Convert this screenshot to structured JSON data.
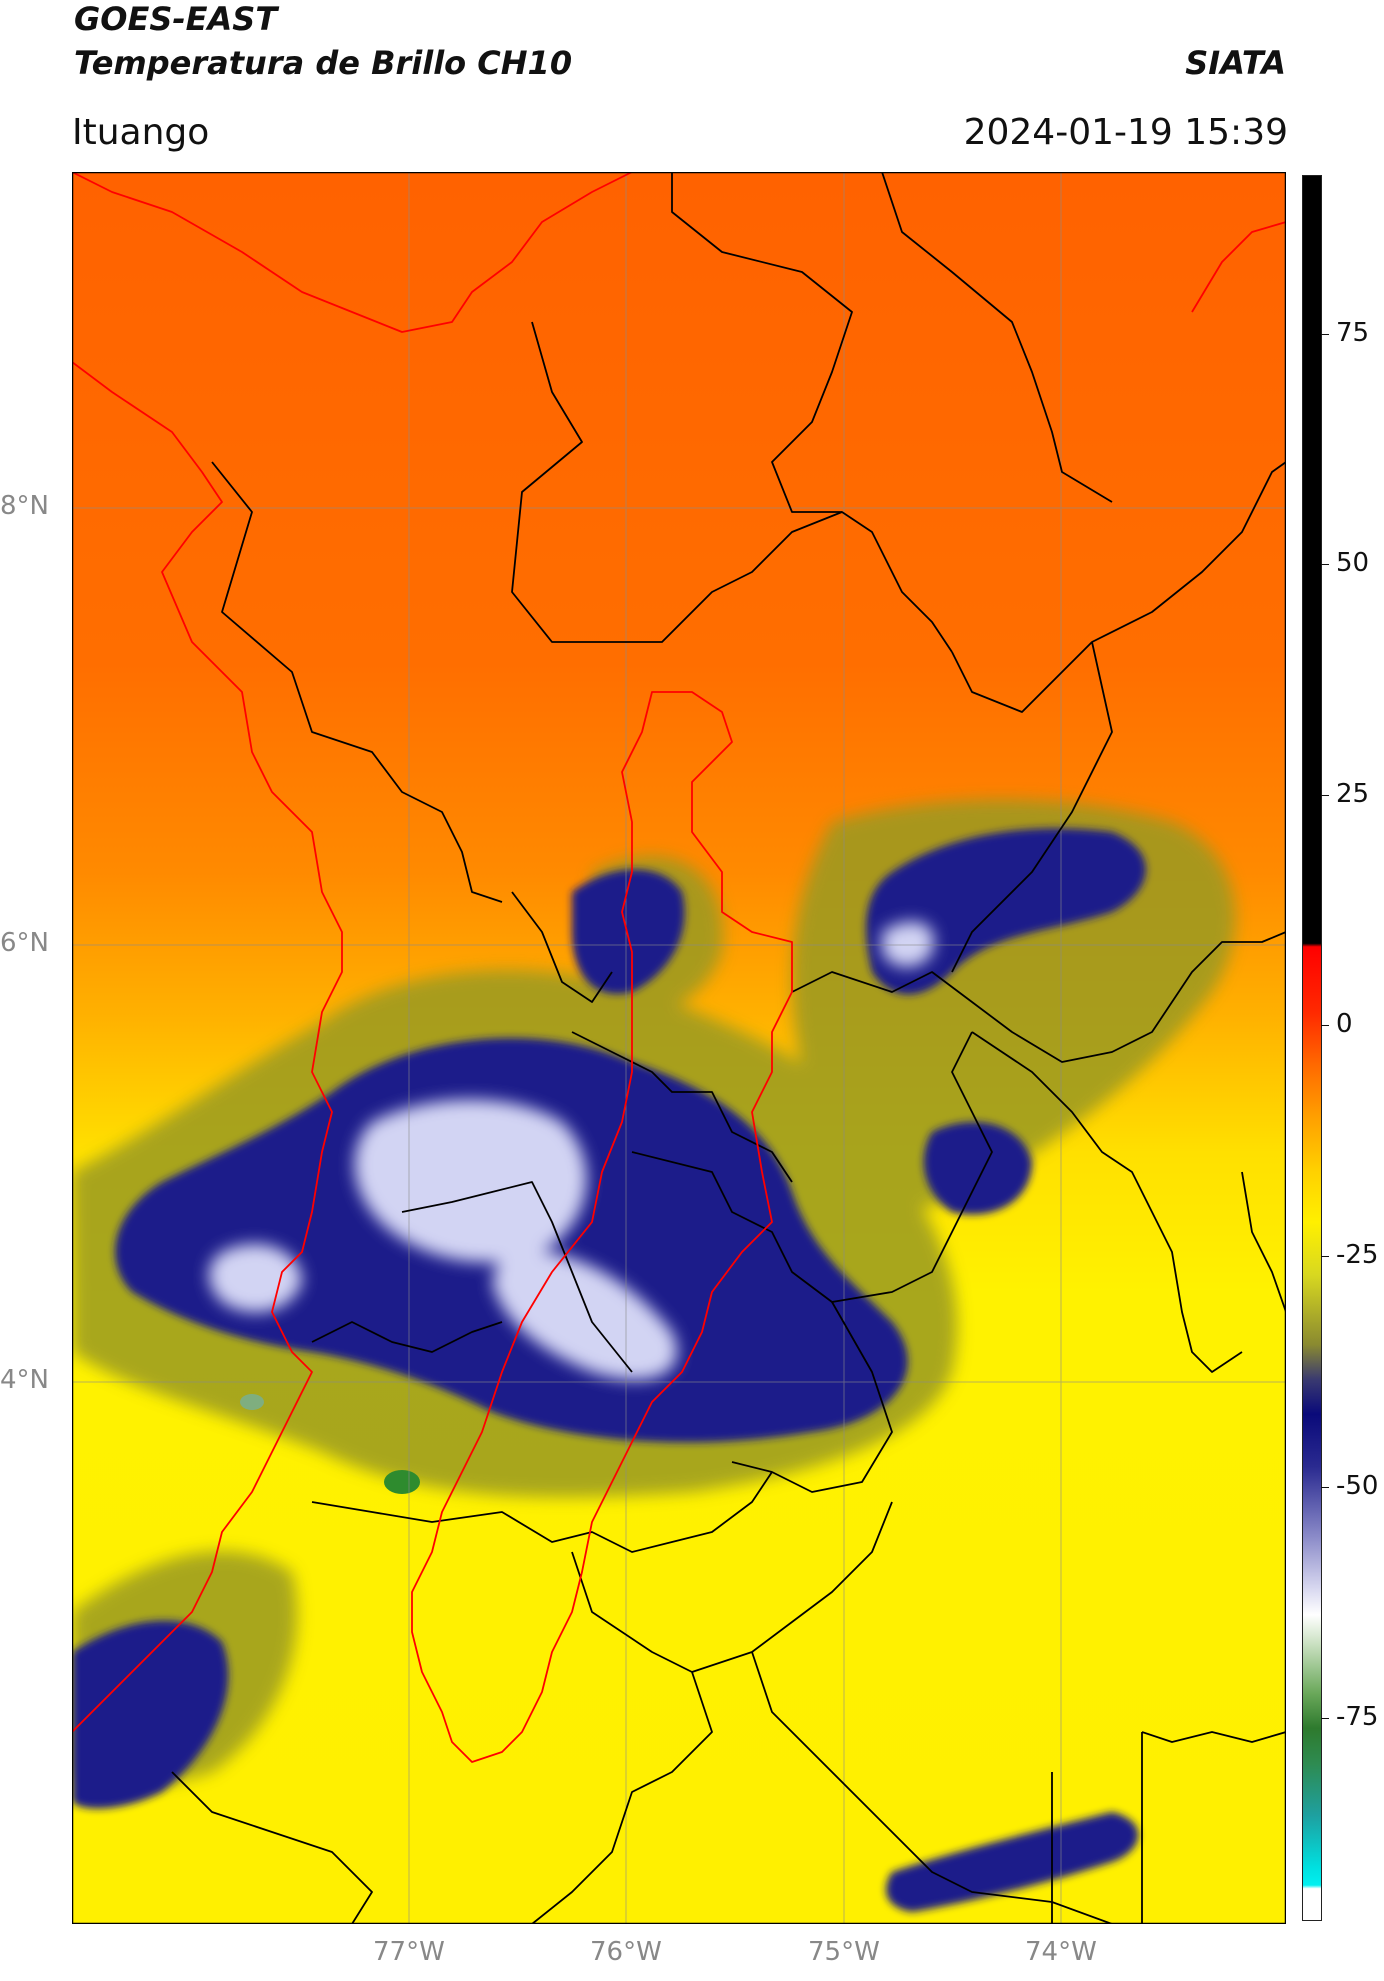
{
  "header": {
    "satellite": "GOES-EAST",
    "product": "Temperatura de Brillo CH10",
    "agency": "SIATA",
    "region": "Ituango",
    "timestamp": "2024-01-19 15:39"
  },
  "map": {
    "lat_ticks": [
      "8°N",
      "6°N",
      "4°N"
    ],
    "lon_ticks": [
      "77°W",
      "76°W",
      "75°W",
      "74°W"
    ],
    "colors": {
      "warm_orange": "#ff6200",
      "orange": "#ff9500",
      "yellow": "#fff000",
      "olive": "#8a8a20",
      "navy": "#1a1f8a",
      "white": "#f4f4ff",
      "green": "#2e8b2e",
      "boundary_black": "#000000",
      "boundary_red": "#ff0000"
    }
  },
  "colorbar": {
    "ticks": [
      "75",
      "50",
      "25",
      "0",
      "-25",
      "-50",
      "-75"
    ]
  }
}
